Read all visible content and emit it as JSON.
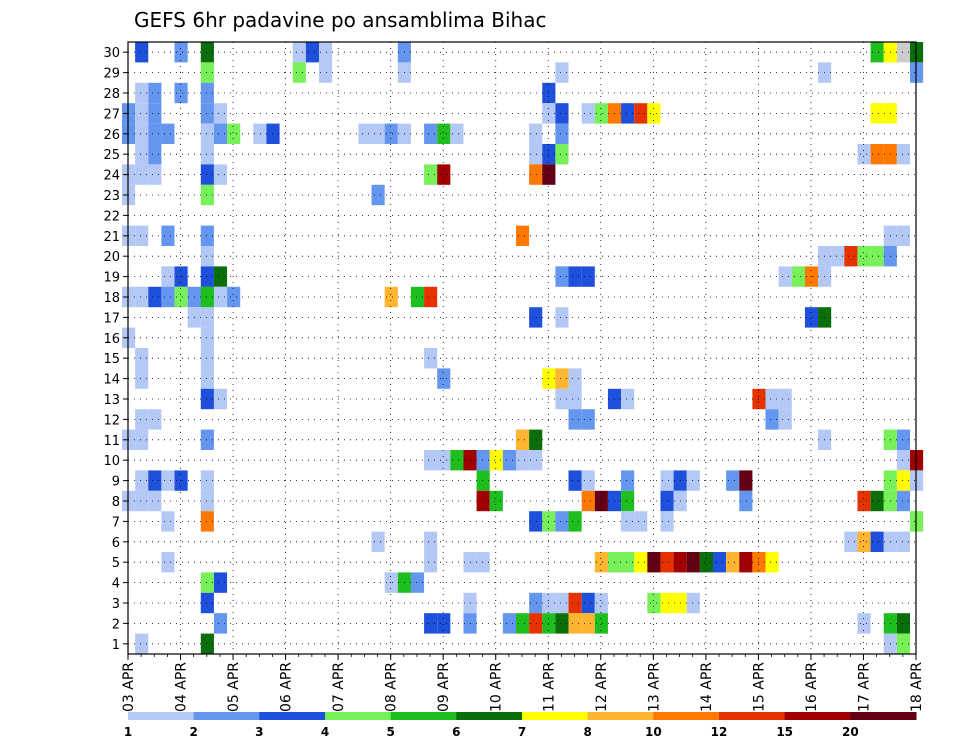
{
  "chart_data": {
    "type": "heatmap",
    "title": "GEFS 6hr padavine po ansamblima Bihac",
    "xlabel": "",
    "ylabel": "",
    "x_ticks": [
      "03 APR",
      "04 APR",
      "05 APR",
      "06 APR",
      "07 APR",
      "08 APR",
      "09 APR",
      "10 APR",
      "11 APR",
      "12 APR",
      "13 APR",
      "14 APR",
      "15 APR",
      "16 APR",
      "17 APR",
      "18 APR"
    ],
    "y_ticks": [
      "1",
      "2",
      "3",
      "4",
      "5",
      "6",
      "7",
      "8",
      "9",
      "10",
      "11",
      "12",
      "13",
      "14",
      "15",
      "16",
      "17",
      "18",
      "19",
      "20",
      "21",
      "22",
      "23",
      "24",
      "25",
      "26",
      "27",
      "28",
      "29",
      "30"
    ],
    "xlim": [
      0,
      60
    ],
    "ylim": [
      0.5,
      30.5
    ],
    "grid": true,
    "legend": {
      "placement": "bottom",
      "levels": [
        "1",
        "2",
        "3",
        "4",
        "5",
        "6",
        "7",
        "8",
        "10",
        "12",
        "15",
        "20"
      ],
      "colors": [
        "#b4c8f5",
        "#6496f0",
        "#1e50dc",
        "#78f05a",
        "#1ebe1e",
        "#0a6e0a",
        "#ffff00",
        "#ffb432",
        "#ff7800",
        "#e63200",
        "#a00000",
        "#640014"
      ]
    },
    "cells": [
      [
        1,
        30,
        3
      ],
      [
        4,
        30,
        2
      ],
      [
        6,
        30,
        6
      ],
      [
        13,
        30,
        1
      ],
      [
        14,
        30,
        3
      ],
      [
        15,
        30,
        1
      ],
      [
        21,
        30,
        2
      ],
      [
        57,
        30,
        5
      ],
      [
        58,
        30,
        7
      ],
      [
        59,
        30,
        13
      ],
      [
        60,
        30,
        6
      ],
      [
        6,
        29,
        4
      ],
      [
        13,
        29,
        4
      ],
      [
        15,
        29,
        1
      ],
      [
        21,
        29,
        1
      ],
      [
        33,
        29,
        1
      ],
      [
        53,
        29,
        1
      ],
      [
        60,
        29,
        2
      ],
      [
        1,
        28,
        1
      ],
      [
        2,
        28,
        2
      ],
      [
        4,
        28,
        2
      ],
      [
        6,
        28,
        2
      ],
      [
        32,
        28,
        3
      ],
      [
        0,
        27,
        2
      ],
      [
        1,
        27,
        1
      ],
      [
        2,
        27,
        2
      ],
      [
        6,
        27,
        2
      ],
      [
        7,
        27,
        1
      ],
      [
        32,
        27,
        1
      ],
      [
        33,
        27,
        3
      ],
      [
        35,
        27,
        1
      ],
      [
        36,
        27,
        4
      ],
      [
        37,
        27,
        9
      ],
      [
        38,
        27,
        3
      ],
      [
        39,
        27,
        10
      ],
      [
        40,
        27,
        7
      ],
      [
        57,
        27,
        7
      ],
      [
        58,
        27,
        7
      ],
      [
        0,
        26,
        2
      ],
      [
        1,
        26,
        1
      ],
      [
        2,
        26,
        2
      ],
      [
        3,
        26,
        2
      ],
      [
        6,
        26,
        1
      ],
      [
        7,
        26,
        2
      ],
      [
        8,
        26,
        4
      ],
      [
        10,
        26,
        1
      ],
      [
        11,
        26,
        3
      ],
      [
        18,
        26,
        1
      ],
      [
        19,
        26,
        1
      ],
      [
        20,
        26,
        2
      ],
      [
        21,
        26,
        1
      ],
      [
        23,
        26,
        2
      ],
      [
        24,
        26,
        5
      ],
      [
        25,
        26,
        1
      ],
      [
        31,
        26,
        1
      ],
      [
        33,
        26,
        2
      ],
      [
        1,
        25,
        1
      ],
      [
        2,
        25,
        2
      ],
      [
        6,
        25,
        1
      ],
      [
        31,
        25,
        1
      ],
      [
        32,
        25,
        3
      ],
      [
        33,
        25,
        4
      ],
      [
        56,
        25,
        1
      ],
      [
        57,
        25,
        9
      ],
      [
        58,
        25,
        9
      ],
      [
        59,
        25,
        1
      ],
      [
        0,
        24,
        1
      ],
      [
        1,
        24,
        1
      ],
      [
        2,
        24,
        1
      ],
      [
        6,
        24,
        3
      ],
      [
        7,
        24,
        1
      ],
      [
        23,
        24,
        4
      ],
      [
        24,
        24,
        11
      ],
      [
        31,
        24,
        9
      ],
      [
        32,
        24,
        12
      ],
      [
        0,
        23,
        1
      ],
      [
        6,
        23,
        4
      ],
      [
        19,
        23,
        2
      ],
      [
        0,
        21,
        1
      ],
      [
        1,
        21,
        1
      ],
      [
        3,
        21,
        2
      ],
      [
        6,
        21,
        2
      ],
      [
        30,
        21,
        9
      ],
      [
        58,
        21,
        1
      ],
      [
        59,
        21,
        1
      ],
      [
        6,
        20,
        1
      ],
      [
        53,
        20,
        1
      ],
      [
        54,
        20,
        1
      ],
      [
        55,
        20,
        10
      ],
      [
        56,
        20,
        4
      ],
      [
        57,
        20,
        4
      ],
      [
        58,
        20,
        2
      ],
      [
        3,
        19,
        1
      ],
      [
        3,
        19,
        1
      ],
      [
        4,
        19,
        3
      ],
      [
        6,
        19,
        3
      ],
      [
        7,
        19,
        6
      ],
      [
        33,
        19,
        2
      ],
      [
        34,
        19,
        3
      ],
      [
        35,
        19,
        3
      ],
      [
        50,
        19,
        1
      ],
      [
        51,
        19,
        4
      ],
      [
        52,
        19,
        9
      ],
      [
        53,
        19,
        1
      ],
      [
        0,
        18,
        1
      ],
      [
        1,
        18,
        1
      ],
      [
        2,
        18,
        3
      ],
      [
        3,
        18,
        2
      ],
      [
        4,
        18,
        4
      ],
      [
        5,
        18,
        2
      ],
      [
        6,
        18,
        3
      ],
      [
        6,
        18,
        5
      ],
      [
        7,
        18,
        1
      ],
      [
        8,
        18,
        2
      ],
      [
        22,
        18,
        5
      ],
      [
        23,
        18,
        10
      ],
      [
        20,
        18,
        8
      ],
      [
        5,
        17,
        1
      ],
      [
        6,
        17,
        1
      ],
      [
        31,
        17,
        3
      ],
      [
        33,
        17,
        1
      ],
      [
        52,
        17,
        3
      ],
      [
        53,
        17,
        6
      ],
      [
        0,
        16,
        1
      ],
      [
        6,
        16,
        1
      ],
      [
        1,
        15,
        1
      ],
      [
        6,
        15,
        1
      ],
      [
        23,
        15,
        1
      ],
      [
        1,
        14,
        1
      ],
      [
        6,
        14,
        1
      ],
      [
        24,
        14,
        2
      ],
      [
        32,
        14,
        7
      ],
      [
        33,
        14,
        8
      ],
      [
        34,
        14,
        1
      ],
      [
        6,
        13,
        3
      ],
      [
        7,
        13,
        1
      ],
      [
        33,
        13,
        1
      ],
      [
        34,
        13,
        1
      ],
      [
        37,
        13,
        3
      ],
      [
        38,
        13,
        1
      ],
      [
        48,
        13,
        10
      ],
      [
        49,
        13,
        1
      ],
      [
        50,
        13,
        1
      ],
      [
        1,
        12,
        1
      ],
      [
        2,
        12,
        1
      ],
      [
        34,
        12,
        2
      ],
      [
        35,
        12,
        2
      ],
      [
        49,
        12,
        2
      ],
      [
        50,
        12,
        1
      ],
      [
        0,
        11,
        1
      ],
      [
        1,
        11,
        1
      ],
      [
        6,
        11,
        2
      ],
      [
        30,
        11,
        1
      ],
      [
        30,
        11,
        8
      ],
      [
        31,
        11,
        6
      ],
      [
        53,
        11,
        1
      ],
      [
        58,
        11,
        4
      ],
      [
        59,
        11,
        2
      ],
      [
        23,
        10,
        1
      ],
      [
        24,
        10,
        1
      ],
      [
        25,
        10,
        5
      ],
      [
        26,
        10,
        11
      ],
      [
        27,
        10,
        2
      ],
      [
        28,
        10,
        7
      ],
      [
        29,
        10,
        2
      ],
      [
        30,
        10,
        1
      ],
      [
        31,
        10,
        1
      ],
      [
        59,
        10,
        1
      ],
      [
        60,
        10,
        11
      ],
      [
        1,
        9,
        1
      ],
      [
        2,
        9,
        3
      ],
      [
        3,
        9,
        1
      ],
      [
        4,
        9,
        3
      ],
      [
        6,
        9,
        1
      ],
      [
        27,
        9,
        5
      ],
      [
        34,
        9,
        3
      ],
      [
        35,
        9,
        1
      ],
      [
        38,
        9,
        2
      ],
      [
        41,
        9,
        1
      ],
      [
        42,
        9,
        3
      ],
      [
        43,
        9,
        1
      ],
      [
        46,
        9,
        2
      ],
      [
        47,
        9,
        12
      ],
      [
        58,
        9,
        4
      ],
      [
        59,
        9,
        7
      ],
      [
        60,
        9,
        1
      ],
      [
        0,
        8,
        1
      ],
      [
        1,
        8,
        1
      ],
      [
        2,
        8,
        1
      ],
      [
        6,
        8,
        1
      ],
      [
        27,
        8,
        11
      ],
      [
        28,
        8,
        5
      ],
      [
        35,
        8,
        9
      ],
      [
        36,
        8,
        12
      ],
      [
        37,
        8,
        3
      ],
      [
        38,
        8,
        5
      ],
      [
        41,
        8,
        3
      ],
      [
        42,
        8,
        1
      ],
      [
        47,
        8,
        2
      ],
      [
        56,
        8,
        10
      ],
      [
        57,
        8,
        6
      ],
      [
        58,
        8,
        4
      ],
      [
        59,
        8,
        2
      ],
      [
        3,
        7,
        1
      ],
      [
        6,
        7,
        9
      ],
      [
        31,
        7,
        3
      ],
      [
        32,
        7,
        4
      ],
      [
        33,
        7,
        2
      ],
      [
        34,
        7,
        5
      ],
      [
        38,
        7,
        1
      ],
      [
        39,
        7,
        1
      ],
      [
        41,
        7,
        1
      ],
      [
        60,
        7,
        4
      ],
      [
        19,
        6,
        1
      ],
      [
        23,
        6,
        1
      ],
      [
        55,
        6,
        1
      ],
      [
        56,
        6,
        8
      ],
      [
        57,
        6,
        3
      ],
      [
        58,
        6,
        1
      ],
      [
        59,
        6,
        1
      ],
      [
        3,
        5,
        1
      ],
      [
        23,
        5,
        1
      ],
      [
        26,
        5,
        1
      ],
      [
        27,
        5,
        1
      ],
      [
        36,
        5,
        8
      ],
      [
        37,
        5,
        4
      ],
      [
        38,
        5,
        4
      ],
      [
        39,
        5,
        7
      ],
      [
        40,
        5,
        12
      ],
      [
        41,
        5,
        10
      ],
      [
        42,
        5,
        11
      ],
      [
        43,
        5,
        12
      ],
      [
        44,
        5,
        6
      ],
      [
        45,
        5,
        3
      ],
      [
        46,
        5,
        8
      ],
      [
        47,
        5,
        11
      ],
      [
        48,
        5,
        9
      ],
      [
        49,
        5,
        7
      ],
      [
        6,
        4,
        4
      ],
      [
        7,
        4,
        3
      ],
      [
        20,
        4,
        1
      ],
      [
        21,
        4,
        5
      ],
      [
        22,
        4,
        2
      ],
      [
        6,
        3,
        3
      ],
      [
        26,
        3,
        1
      ],
      [
        31,
        3,
        2
      ],
      [
        32,
        3,
        1
      ],
      [
        33,
        3,
        1
      ],
      [
        34,
        3,
        10
      ],
      [
        35,
        3,
        3
      ],
      [
        36,
        3,
        1
      ],
      [
        40,
        3,
        4
      ],
      [
        41,
        3,
        7
      ],
      [
        42,
        3,
        7
      ],
      [
        43,
        3,
        1
      ],
      [
        7,
        2,
        2
      ],
      [
        23,
        2,
        3
      ],
      [
        24,
        2,
        3
      ],
      [
        26,
        2,
        2
      ],
      [
        29,
        2,
        2
      ],
      [
        30,
        2,
        5
      ],
      [
        31,
        2,
        10
      ],
      [
        32,
        2,
        5
      ],
      [
        33,
        2,
        6
      ],
      [
        34,
        2,
        8
      ],
      [
        35,
        2,
        8
      ],
      [
        36,
        2,
        5
      ],
      [
        56,
        2,
        1
      ],
      [
        58,
        2,
        5
      ],
      [
        59,
        2,
        6
      ],
      [
        1,
        1,
        1
      ],
      [
        6,
        1,
        6
      ],
      [
        58,
        1,
        1
      ],
      [
        59,
        1,
        4
      ]
    ]
  }
}
